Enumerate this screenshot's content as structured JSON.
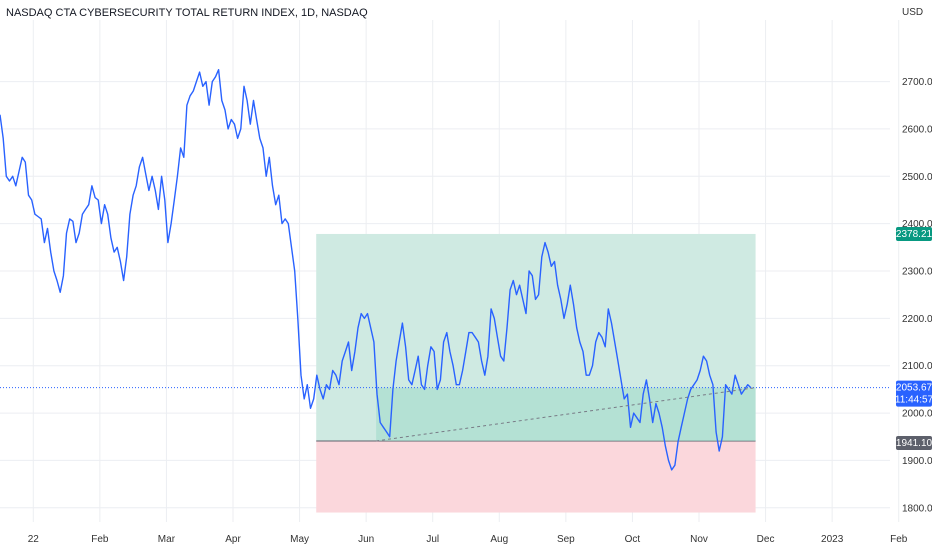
{
  "header": {
    "title": "NASDAQ CTA CYBERSECURITY TOTAL RETURN INDEX, 1D, NASDAQ"
  },
  "colors": {
    "line": "#2962ff",
    "profit_zone": "#cfeae2",
    "profit_zone_dark": "#9fd8c9",
    "loss_zone": "#fbd7dc",
    "target_badge": "#089981",
    "entry_badge": "#5d606b",
    "price_badge": "#2962ff",
    "grid": "#eceef2"
  },
  "price_axis": {
    "currency": "USD",
    "ticks": [
      "2700.00",
      "2600.00",
      "2500.00",
      "2400.00",
      "2300.00",
      "2200.00",
      "2100.00",
      "2000.00",
      "1900.00",
      "1800.00"
    ],
    "tick_values": [
      2700,
      2600,
      2500,
      2400,
      2300,
      2200,
      2100,
      2000,
      1900,
      1800
    ]
  },
  "time_axis": {
    "labels": [
      "22",
      "Feb",
      "Mar",
      "Apr",
      "May",
      "Jun",
      "Jul",
      "Aug",
      "Sep",
      "Oct",
      "Nov",
      "Dec",
      "2023",
      "Feb"
    ]
  },
  "badges": {
    "target": "2378.21",
    "current_price": "2053.67",
    "countdown": "11:44:57",
    "entry": "1941.10"
  },
  "position_tool": {
    "target": 2378.21,
    "entry": 1941.1,
    "stop": 1790,
    "start_label": "May",
    "end_label": "Dec",
    "start_offset": 0.25,
    "end_offset": -0.15
  },
  "trend_line": {
    "from": [
      "Jun",
      1941.1
    ],
    "to": [
      "Nov",
      2053.67
    ]
  },
  "chart_data": {
    "type": "line",
    "title": "NASDAQ CTA CYBERSECURITY TOTAL RETURN INDEX, 1D, NASDAQ",
    "ylabel": "USD",
    "ylim": [
      1770,
      2830
    ],
    "x_labels": [
      "22",
      "Feb",
      "Mar",
      "Apr",
      "May",
      "Jun",
      "Jul",
      "Aug",
      "Sep",
      "Oct",
      "Nov",
      "Dec",
      "2023",
      "Feb"
    ],
    "x_range": [
      "2022-01",
      "2023-02"
    ],
    "series": [
      {
        "values": [
          2630,
          2580,
          2500,
          2490,
          2500,
          2480,
          2510,
          2540,
          2530,
          2460,
          2450,
          2420,
          2415,
          2410,
          2360,
          2390,
          2340,
          2300,
          2280,
          2255,
          2290,
          2380,
          2410,
          2405,
          2360,
          2380,
          2420,
          2430,
          2440,
          2480,
          2455,
          2450,
          2400,
          2440,
          2420,
          2370,
          2340,
          2350,
          2320,
          2280,
          2330,
          2420,
          2460,
          2480,
          2520,
          2540,
          2505,
          2470,
          2500,
          2470,
          2430,
          2500,
          2450,
          2360,
          2400,
          2450,
          2500,
          2560,
          2540,
          2650,
          2670,
          2680,
          2700,
          2720,
          2690,
          2700,
          2650,
          2700,
          2710,
          2725,
          2660,
          2640,
          2600,
          2620,
          2610,
          2580,
          2600,
          2690,
          2660,
          2610,
          2660,
          2620,
          2580,
          2560,
          2500,
          2540,
          2480,
          2440,
          2460,
          2400,
          2410,
          2400,
          2350,
          2300,
          2200,
          2080,
          2030,
          2060,
          2010,
          2030,
          2080,
          2050,
          2030,
          2060,
          2050,
          2090,
          2080,
          2060,
          2110,
          2130,
          2150,
          2090,
          2130,
          2180,
          2210,
          2200,
          2210,
          2180,
          2150,
          2040,
          1980,
          1970,
          1960,
          1950,
          2050,
          2110,
          2150,
          2190,
          2140,
          2070,
          2060,
          2090,
          2120,
          2060,
          2050,
          2100,
          2140,
          2130,
          2050,
          2070,
          2150,
          2170,
          2130,
          2100,
          2060,
          2060,
          2090,
          2130,
          2170,
          2170,
          2160,
          2150,
          2110,
          2080,
          2120,
          2220,
          2200,
          2160,
          2120,
          2110,
          2180,
          2260,
          2280,
          2250,
          2270,
          2240,
          2210,
          2300,
          2290,
          2240,
          2250,
          2330,
          2360,
          2340,
          2310,
          2320,
          2270,
          2240,
          2200,
          2230,
          2270,
          2230,
          2180,
          2150,
          2130,
          2080,
          2080,
          2100,
          2150,
          2170,
          2160,
          2140,
          2220,
          2190,
          2150,
          2110,
          2070,
          2030,
          2040,
          1970,
          2000,
          1990,
          1980,
          2040,
          2070,
          2030,
          1980,
          2020,
          2000,
          1970,
          1930,
          1900,
          1880,
          1890,
          1940,
          1970,
          2000,
          2030,
          2050,
          2060,
          2070,
          2090,
          2120,
          2110,
          2080,
          2060,
          1960,
          1920,
          1950,
          2060,
          2050,
          2040,
          2080,
          2060,
          2040,
          2050,
          2060,
          2053.67
        ]
      }
    ],
    "annotations": {
      "target_price": 2378.21,
      "entry_price": 1941.1,
      "last_price": 2053.67
    }
  }
}
